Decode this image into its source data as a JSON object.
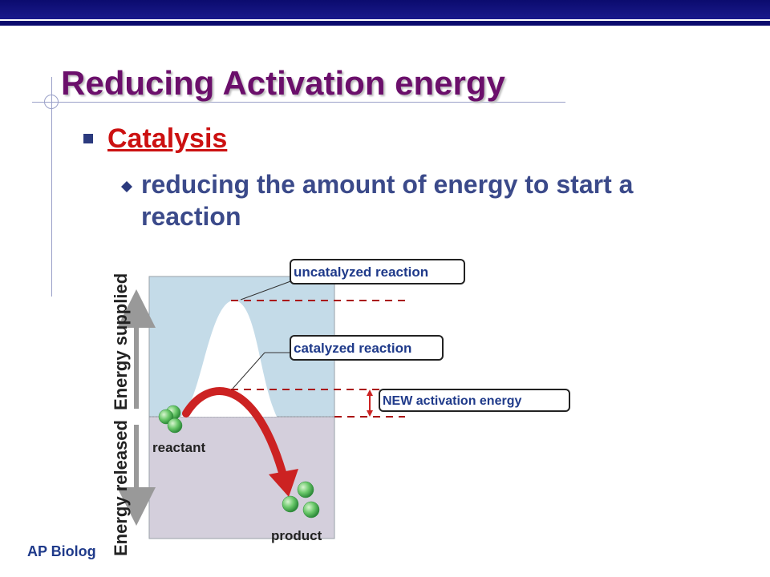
{
  "slide": {
    "title": "Reducing Activation energy",
    "bullet_1": "Catalysis",
    "bullet_2": "reducing the amount of energy to start a reaction",
    "footer": "AP Biolog"
  },
  "diagram": {
    "axis_supplied": "Energy supplied",
    "axis_released": "Energy released",
    "label_uncatalyzed": "uncatalyzed reaction",
    "label_catalyzed": "catalyzed reaction",
    "label_activation": "NEW activation energy",
    "label_reactant": "reactant",
    "label_product": "product",
    "colors": {
      "supplied_region": "#c4dbe8",
      "released_region": "#d4cfdc",
      "arrow": "#cc2222",
      "dashed_line": "#aa1111",
      "molecule": "#6ac86a",
      "label_text": "#1f3a8a"
    }
  }
}
